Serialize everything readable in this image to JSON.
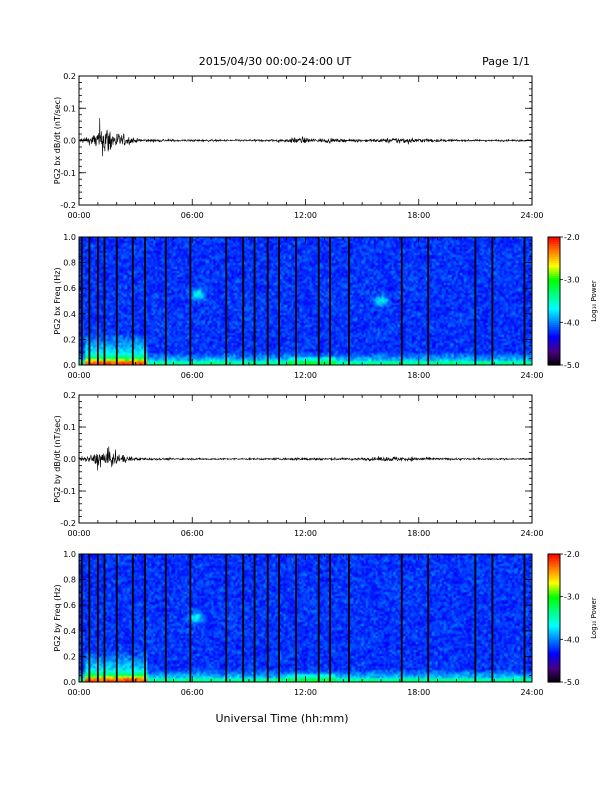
{
  "header": {
    "date_range": "2015/04/30  00:00-24:00 UT",
    "page_label": "Page 1/1"
  },
  "footer": {
    "xlabel": "Universal Time (hh:mm)"
  },
  "colors": {
    "waveform": "#000000",
    "gap_line": "#000000",
    "colormap": [
      "#000000",
      "#4b0082",
      "#0000ff",
      "#0080ff",
      "#00ffff",
      "#00ff80",
      "#00ff00",
      "#ffff00",
      "#ff8000",
      "#ff0000"
    ]
  },
  "chart_data": [
    {
      "id": "bx-waveform",
      "type": "line",
      "ylabel": "PG2 bx dB/dt (nT/sec)",
      "xlim": [
        0,
        24
      ],
      "ylim": [
        -0.2,
        0.2
      ],
      "xticks": [
        "00:00",
        "06:00",
        "12:00",
        "18:00",
        "24:00"
      ],
      "yticks": [
        "-0.2",
        "-0.1",
        "0.0",
        "0.1",
        "0.2"
      ],
      "yticks_values": [
        -0.2,
        -0.1,
        0.0,
        0.1,
        0.2
      ],
      "series": [
        {
          "x": [
            0,
            0.5,
            0.8,
            1.0,
            1.2,
            1.4,
            1.6,
            1.8,
            2.0,
            2.2,
            2.5,
            3.0,
            3.5,
            4.0,
            5.0,
            6.0,
            8.0,
            10.0,
            11.0,
            11.5,
            12.0,
            12.5,
            13.0,
            14.0,
            15.0,
            16.0,
            16.5,
            17.0,
            17.5,
            18.0,
            19.0,
            20.0,
            22.0,
            24.0
          ],
          "amplitude": [
            0.015,
            0.02,
            0.04,
            0.06,
            0.07,
            0.11,
            0.08,
            0.06,
            0.05,
            0.04,
            0.03,
            0.012,
            0.01,
            0.008,
            0.007,
            0.006,
            0.005,
            0.006,
            0.01,
            0.02,
            0.015,
            0.012,
            0.012,
            0.008,
            0.008,
            0.01,
            0.015,
            0.02,
            0.015,
            0.012,
            0.008,
            0.006,
            0.005,
            0.005
          ]
        }
      ]
    },
    {
      "id": "bx-spectrogram",
      "type": "heatmap",
      "ylabel": "PG2 bx Freq (Hz)",
      "xlim": [
        0,
        24
      ],
      "ylim": [
        0.0,
        1.0
      ],
      "xticks": [
        "00:00",
        "06:00",
        "12:00",
        "18:00",
        "24:00"
      ],
      "yticks": [
        "0.0",
        "0.2",
        "0.4",
        "0.6",
        "0.8",
        "1.0"
      ],
      "yticks_values": [
        0.0,
        0.2,
        0.4,
        0.6,
        0.8,
        1.0
      ],
      "colorbar": {
        "label": "Log₁₀ Power",
        "range": [
          -5.0,
          -2.0
        ],
        "ticks": [
          "-5.0",
          "-4.0",
          "-3.0",
          "-2.0"
        ],
        "ticks_values": [
          -5.0,
          -4.0,
          -3.0,
          -2.0
        ]
      },
      "gap_times": [
        0.15,
        0.55,
        1.0,
        1.35,
        2.0,
        2.85,
        3.5,
        4.6,
        5.9,
        7.8,
        8.7,
        9.3,
        10.0,
        10.6,
        11.5,
        12.7,
        13.3,
        14.3,
        17.1,
        18.5,
        21.0,
        21.9,
        23.6
      ],
      "bright_features": [
        {
          "t": 6.3,
          "f": 0.55
        },
        {
          "t": 16.0,
          "f": 0.5
        }
      ]
    },
    {
      "id": "by-waveform",
      "type": "line",
      "ylabel": "PG2 by dB/dt (nT/sec)",
      "xlim": [
        0,
        24
      ],
      "ylim": [
        -0.2,
        0.2
      ],
      "xticks": [
        "00:00",
        "06:00",
        "12:00",
        "18:00",
        "24:00"
      ],
      "yticks": [
        "-0.2",
        "-0.1",
        "0.0",
        "0.1",
        "0.2"
      ],
      "yticks_values": [
        -0.2,
        -0.1,
        0.0,
        0.1,
        0.2
      ],
      "series": [
        {
          "x": [
            0,
            0.5,
            0.8,
            1.0,
            1.2,
            1.4,
            1.6,
            1.8,
            2.0,
            2.2,
            2.5,
            3.0,
            3.5,
            4.0,
            5.0,
            6.0,
            8.0,
            10.0,
            11.0,
            11.5,
            12.0,
            12.5,
            13.0,
            14.0,
            15.0,
            16.0,
            16.5,
            17.0,
            17.5,
            18.0,
            19.0,
            20.0,
            22.0,
            24.0
          ],
          "amplitude": [
            0.012,
            0.018,
            0.03,
            0.045,
            0.05,
            0.06,
            0.055,
            0.045,
            0.035,
            0.03,
            0.02,
            0.01,
            0.008,
            0.006,
            0.005,
            0.005,
            0.004,
            0.005,
            0.006,
            0.01,
            0.008,
            0.008,
            0.008,
            0.006,
            0.008,
            0.012,
            0.014,
            0.015,
            0.012,
            0.01,
            0.006,
            0.005,
            0.004,
            0.004
          ]
        }
      ]
    },
    {
      "id": "by-spectrogram",
      "type": "heatmap",
      "ylabel": "PG2 by Freq (Hz)",
      "xlim": [
        0,
        24
      ],
      "ylim": [
        0.0,
        1.0
      ],
      "xticks": [
        "00:00",
        "06:00",
        "12:00",
        "18:00",
        "24:00"
      ],
      "yticks": [
        "0.0",
        "0.2",
        "0.4",
        "0.6",
        "0.8",
        "1.0"
      ],
      "yticks_values": [
        0.0,
        0.2,
        0.4,
        0.6,
        0.8,
        1.0
      ],
      "colorbar": {
        "label": "Log₁₀ Power",
        "range": [
          -5.0,
          -2.0
        ],
        "ticks": [
          "-5.0",
          "-4.0",
          "-3.0",
          "-2.0"
        ],
        "ticks_values": [
          -5.0,
          -4.0,
          -3.0,
          -2.0
        ]
      },
      "gap_times": [
        0.15,
        0.55,
        1.0,
        1.35,
        2.0,
        2.85,
        3.5,
        4.6,
        5.9,
        7.8,
        8.7,
        9.3,
        10.0,
        10.6,
        11.5,
        12.7,
        13.3,
        14.3,
        17.1,
        18.5,
        21.0,
        21.9,
        23.6
      ],
      "bright_features": [
        {
          "t": 6.2,
          "f": 0.5
        }
      ]
    }
  ]
}
